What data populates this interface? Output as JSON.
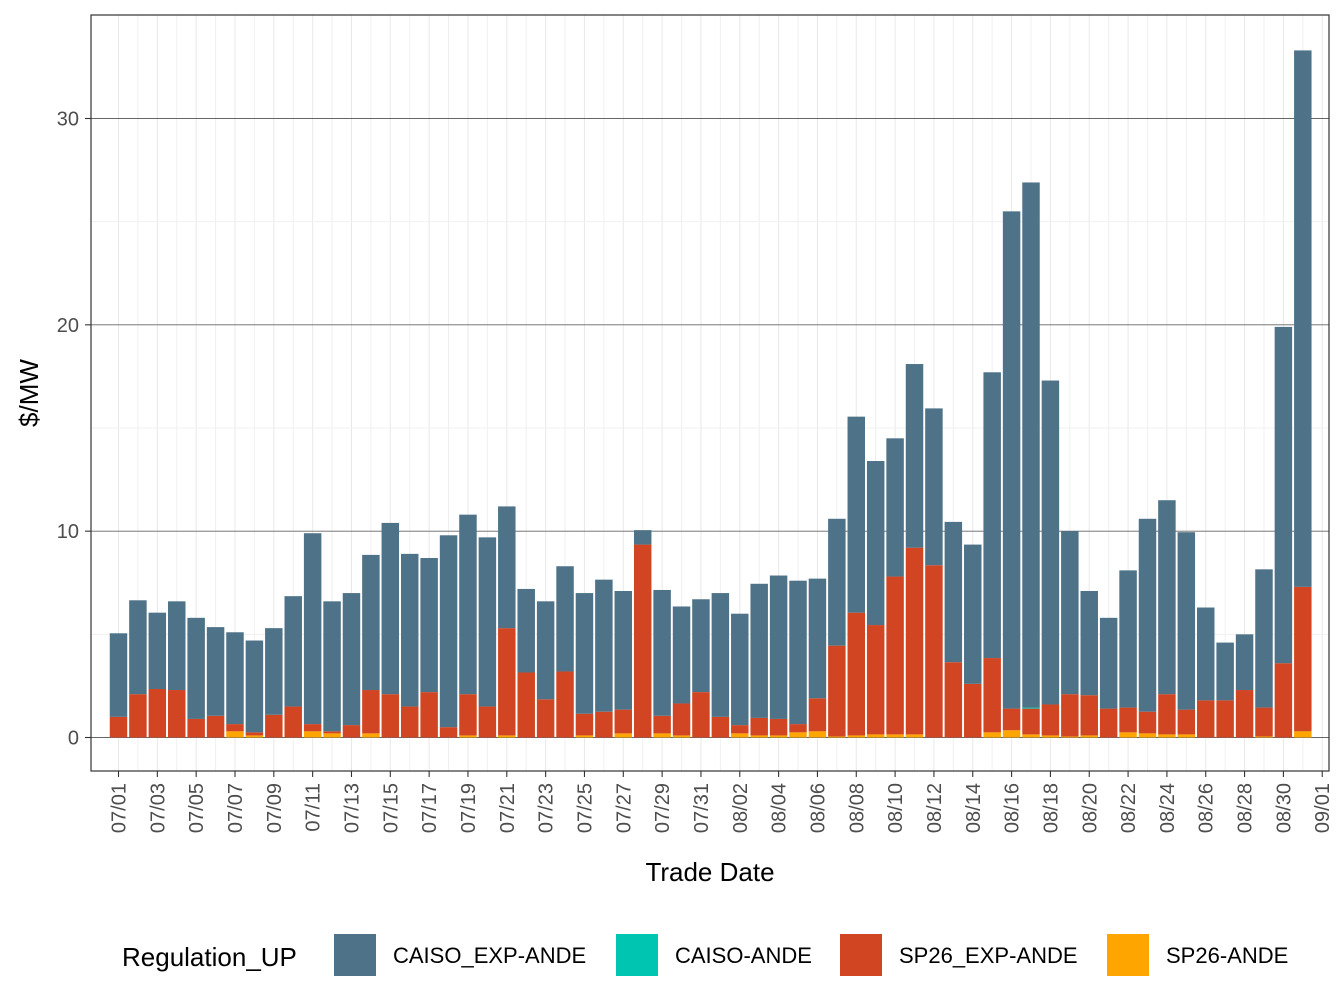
{
  "chart_data": {
    "type": "bar",
    "stacked": true,
    "title": "",
    "xlabel": "Trade Date",
    "ylabel": "$/MW",
    "ylim": [
      -1.5,
      35
    ],
    "y_ticks": [
      0,
      10,
      20,
      30
    ],
    "y_tick_labels": [
      "0",
      "10",
      "20",
      "30"
    ],
    "x_tick_labels": [
      "07/01",
      "07/03",
      "07/05",
      "07/07",
      "07/09",
      "07/11",
      "07/13",
      "07/15",
      "07/17",
      "07/19",
      "07/21",
      "07/23",
      "07/25",
      "07/27",
      "07/29",
      "07/31",
      "08/02",
      "08/04",
      "08/06",
      "08/08",
      "08/10",
      "08/12",
      "08/14",
      "08/16",
      "08/18",
      "08/20",
      "08/22",
      "08/24",
      "08/26",
      "08/28",
      "08/30",
      "09/01"
    ],
    "categories": [
      "07/01",
      "07/02",
      "07/03",
      "07/04",
      "07/05",
      "07/06",
      "07/07",
      "07/08",
      "07/09",
      "07/10",
      "07/11",
      "07/12",
      "07/13",
      "07/14",
      "07/15",
      "07/16",
      "07/17",
      "07/18",
      "07/19",
      "07/20",
      "07/21",
      "07/22",
      "07/23",
      "07/24",
      "07/25",
      "07/26",
      "07/27",
      "07/28",
      "07/29",
      "07/30",
      "07/31",
      "08/01",
      "08/02",
      "08/03",
      "08/04",
      "08/05",
      "08/06",
      "08/07",
      "08/08",
      "08/09",
      "08/10",
      "08/11",
      "08/12",
      "08/13",
      "08/14",
      "08/15",
      "08/16",
      "08/17",
      "08/18",
      "08/19",
      "08/20",
      "08/21",
      "08/22",
      "08/23",
      "08/24",
      "08/25",
      "08/26",
      "08/27",
      "08/28",
      "08/29",
      "08/30",
      "08/31"
    ],
    "legend": {
      "title": "Regulation_UP",
      "position": "bottom"
    },
    "series": [
      {
        "name": "SP26-ANDE",
        "color": "#FFA500",
        "values": [
          0,
          0,
          0,
          0,
          0,
          0,
          0.3,
          0.1,
          0,
          0,
          0.3,
          0.2,
          0,
          0.2,
          0,
          0,
          0,
          0,
          0.1,
          0,
          0.1,
          0,
          0,
          0,
          0.1,
          0,
          0.2,
          0,
          0.2,
          0.1,
          0,
          0,
          0.2,
          0.1,
          0.1,
          0.25,
          0.3,
          0.05,
          0.1,
          0.15,
          0.15,
          0.15,
          0,
          0,
          0,
          0.25,
          0.35,
          0.15,
          0.1,
          0.05,
          0.1,
          0,
          0.25,
          0.2,
          0.15,
          0.15,
          0,
          0,
          0,
          0.05,
          0,
          0.3
        ]
      },
      {
        "name": "SP26_EXP-ANDE",
        "color": "#D24522",
        "values": [
          1.0,
          2.1,
          2.35,
          2.3,
          0.9,
          1.05,
          0.35,
          0.15,
          1.1,
          1.5,
          0.35,
          0.1,
          0.6,
          2.1,
          2.1,
          1.5,
          2.2,
          0.5,
          2.0,
          1.5,
          5.2,
          3.15,
          1.85,
          3.2,
          1.05,
          1.25,
          1.15,
          9.35,
          0.85,
          1.55,
          2.2,
          1.0,
          0.4,
          0.85,
          0.8,
          0.4,
          1.6,
          4.4,
          5.95,
          5.3,
          7.65,
          9.05,
          8.35,
          3.65,
          2.6,
          3.6,
          1.05,
          1.25,
          1.5,
          2.05,
          1.95,
          1.4,
          1.2,
          1.05,
          1.95,
          1.2,
          1.8,
          1.8,
          2.3,
          1.4,
          3.6,
          7.0
        ]
      },
      {
        "name": "CAISO-ANDE",
        "color": "#00C5B0",
        "values": [
          0,
          0,
          0,
          0,
          0,
          0,
          0,
          0,
          0,
          0,
          0,
          0,
          0,
          0,
          0,
          0,
          0,
          0,
          0,
          0,
          0,
          0,
          0,
          0,
          0,
          0,
          0,
          0,
          0,
          0,
          0,
          0,
          0,
          0,
          0,
          0,
          0,
          0,
          0,
          0,
          0,
          0,
          0,
          0,
          0,
          0,
          0,
          0.05,
          0,
          0,
          0,
          0,
          0,
          0,
          0,
          0,
          0,
          0,
          0,
          0,
          0,
          0
        ]
      },
      {
        "name": "CAISO_EXP-ANDE",
        "color": "#4E7287",
        "values": [
          4.05,
          4.55,
          3.7,
          4.3,
          4.9,
          4.3,
          4.45,
          4.45,
          4.2,
          5.35,
          9.25,
          6.3,
          6.4,
          6.55,
          8.3,
          7.4,
          6.5,
          9.3,
          8.7,
          8.2,
          5.9,
          4.05,
          4.75,
          5.1,
          5.85,
          6.4,
          5.75,
          0.7,
          6.1,
          4.7,
          4.5,
          6.0,
          5.4,
          6.5,
          6.95,
          6.95,
          5.8,
          6.15,
          9.5,
          7.95,
          6.7,
          8.9,
          7.6,
          6.8,
          6.75,
          13.85,
          24.1,
          25.45,
          15.7,
          7.9,
          5.05,
          4.4,
          6.65,
          9.35,
          9.4,
          8.6,
          4.5,
          2.8,
          2.7,
          6.7,
          16.3,
          26.0
        ]
      }
    ]
  }
}
